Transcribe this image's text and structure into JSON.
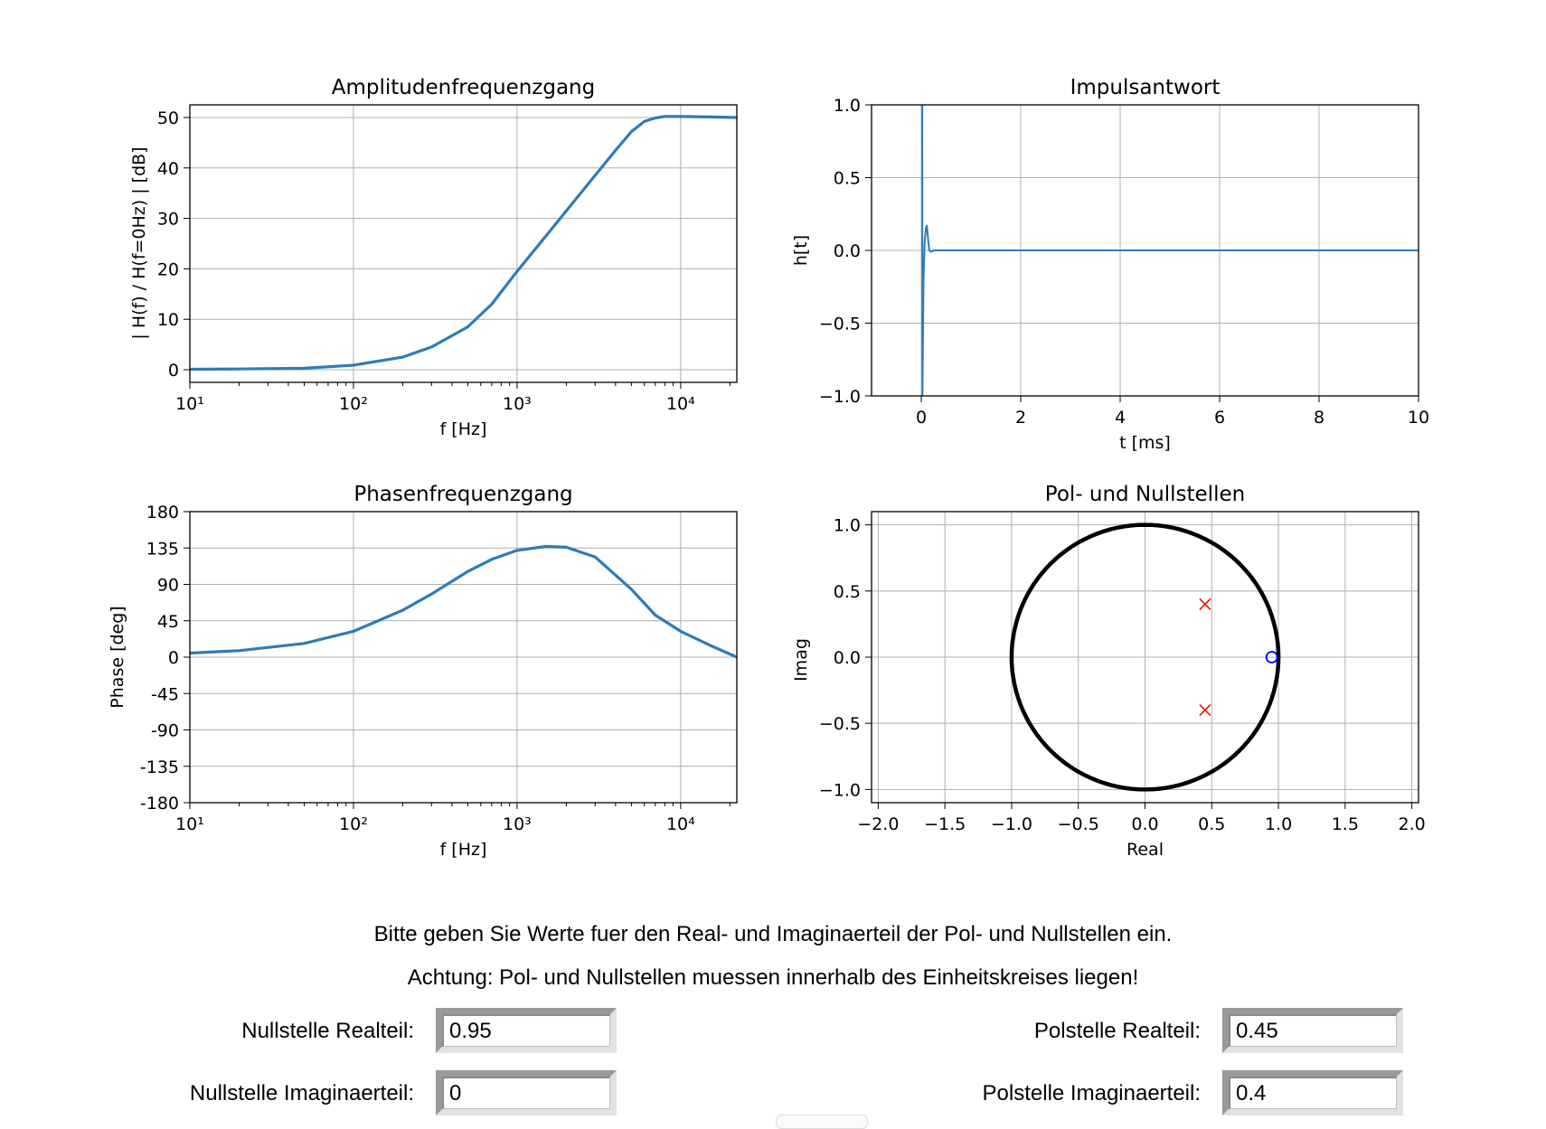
{
  "plots": {
    "amplitude": {
      "title": "Amplitudenfrequenzgang",
      "xlabel": "f [Hz]",
      "ylabel": "| H(f) / H(f=0Hz) | [dB]",
      "yticks": [
        "50",
        "40",
        "30",
        "20",
        "10",
        "0"
      ],
      "xticks": [
        "10¹",
        "10²",
        "10³",
        "10⁴"
      ]
    },
    "impulse": {
      "title": "Impulsantwort",
      "xlabel": "t [ms]",
      "ylabel": "h[t]",
      "yticks": [
        "1.0",
        "0.5",
        "0.0",
        "−0.5",
        "−1.0"
      ],
      "xticks": [
        "0",
        "2",
        "4",
        "6",
        "8",
        "10"
      ]
    },
    "phase": {
      "title": "Phasenfrequenzgang",
      "xlabel": "f [Hz]",
      "ylabel": "Phase [deg]",
      "yticks": [
        "180",
        "135",
        "90",
        "45",
        "0",
        "-45",
        "-90",
        "-135",
        "-180"
      ],
      "xticks": [
        "10¹",
        "10²",
        "10³",
        "10⁴"
      ]
    },
    "polezero": {
      "title": "Pol- und Nullstellen",
      "xlabel": "Real",
      "ylabel": "Imag",
      "yticks": [
        "1.0",
        "0.5",
        "0.0",
        "−0.5",
        "−1.0"
      ],
      "xticks": [
        "−2.0",
        "−1.5",
        "−1.0",
        "−0.5",
        "0.0",
        "0.5",
        "1.0",
        "1.5",
        "2.0"
      ]
    }
  },
  "chart_data": [
    {
      "type": "line",
      "title": "Amplitudenfrequenzgang",
      "xlabel": "f [Hz]",
      "ylabel": "| H(f) / H(f=0Hz) | [dB]",
      "xscale": "log",
      "xlim": [
        10,
        22050
      ],
      "ylim": [
        -2.5,
        52.5
      ],
      "grid": true,
      "color": "#2f7bb6",
      "x": [
        10,
        20,
        50,
        100,
        200,
        300,
        500,
        700,
        1000,
        1500,
        2000,
        3000,
        4000,
        5000,
        6000,
        7000,
        8000,
        10000,
        15000,
        22050
      ],
      "y": [
        0.1,
        0.15,
        0.3,
        0.9,
        2.5,
        4.5,
        8.5,
        13.0,
        19.5,
        26.5,
        31.5,
        38.5,
        43.5,
        47.2,
        49.2,
        49.9,
        50.2,
        50.2,
        50.1,
        50.0
      ]
    },
    {
      "type": "line",
      "title": "Impulsantwort",
      "xlabel": "t [ms]",
      "ylabel": "h[t]",
      "xlim": [
        -1,
        10
      ],
      "ylim": [
        -1.0,
        1.0
      ],
      "grid": true,
      "color": "#2f7bb6",
      "x": [
        0,
        0.001,
        0.02,
        0.023,
        0.045,
        0.068,
        0.09,
        0.113,
        0.136,
        0.16,
        0.2,
        0.25,
        10
      ],
      "y": [
        1.0,
        1.0,
        1.0,
        -1.0,
        -0.2,
        0.05,
        0.15,
        0.17,
        0.08,
        0.0,
        -0.01,
        0.0,
        0.0
      ]
    },
    {
      "type": "line",
      "title": "Phasenfrequenzgang",
      "xlabel": "f [Hz]",
      "ylabel": "Phase [deg]",
      "xscale": "log",
      "xlim": [
        10,
        22050
      ],
      "ylim": [
        -180,
        180
      ],
      "grid": true,
      "color": "#2f7bb6",
      "x": [
        10,
        20,
        50,
        100,
        200,
        300,
        500,
        700,
        1000,
        1500,
        2000,
        3000,
        5000,
        7000,
        10000,
        15000,
        22050
      ],
      "y": [
        5,
        8,
        17,
        32,
        58,
        78,
        106,
        121,
        132,
        137,
        136,
        124,
        84,
        52,
        32,
        15,
        0
      ]
    },
    {
      "type": "scatter",
      "title": "Pol- und Nullstellen",
      "xlabel": "Real",
      "ylabel": "Imag",
      "xlim": [
        -2.05,
        2.05
      ],
      "ylim": [
        -1.1,
        1.1
      ],
      "grid": true,
      "unit_circle": {
        "radius": 1,
        "color": "#000000"
      },
      "series": [
        {
          "marker": "x",
          "color": "#ff0000",
          "x": [
            0.45,
            0.45
          ],
          "y": [
            0.4,
            -0.4
          ]
        },
        {
          "marker": "o",
          "color": "#0000ff",
          "x": [
            0.95
          ],
          "y": [
            0.0
          ]
        }
      ]
    }
  ],
  "info": {
    "line1": "Bitte geben Sie Werte fuer den Real- und Imaginaerteil der Pol- und Nullstellen ein.",
    "line2": "Achtung: Pol- und Nullstellen muessen innerhalb des Einheitskreises liegen!"
  },
  "inputs": {
    "zero_real": {
      "label": "Nullstelle Realteil:",
      "value": "0.95"
    },
    "zero_imag": {
      "label": "Nullstelle Imaginaerteil:",
      "value": "0"
    },
    "pole_real": {
      "label": "Polstelle Realteil:",
      "value": "0.45"
    },
    "pole_imag": {
      "label": "Polstelle Imaginaerteil:",
      "value": "0.4"
    }
  }
}
